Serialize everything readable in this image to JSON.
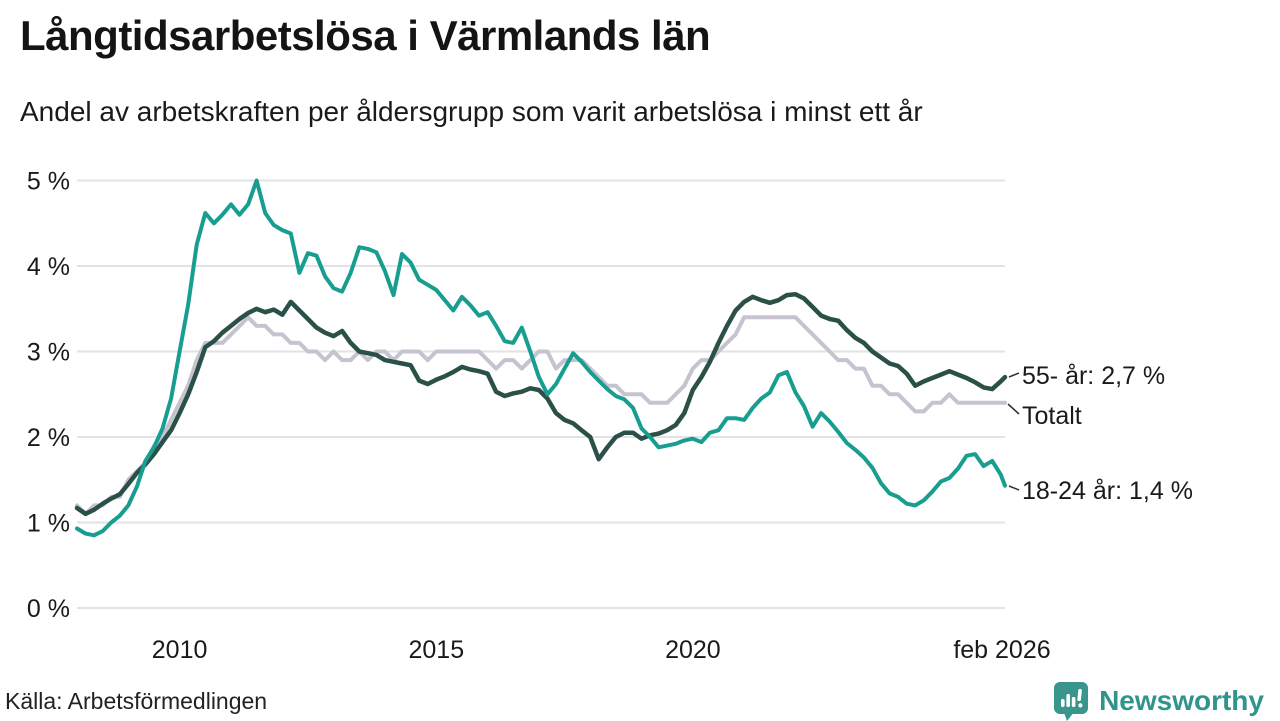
{
  "header": {
    "title": "Långtidsarbetslösa i Värmlands län",
    "subtitle": "Andel av arbetskraften per åldersgrupp som varit arbetslösa i minst ett år"
  },
  "footer": {
    "source": "Källa: Arbetsförmedlingen",
    "brand": "Newsworthy",
    "brand_color": "#2f948b"
  },
  "chart_data": {
    "type": "line",
    "title": "Långtidsarbetslösa i Värmlands län",
    "subtitle": "Andel av arbetskraften per åldersgrupp som varit arbetslösa i minst ett år",
    "x_domain": [
      2008.0,
      2026.083
    ],
    "x_step_years": 0.166667,
    "ylim": [
      0,
      5
    ],
    "grid": true,
    "y_ticks_top_down": [
      "5 %",
      "4 %",
      "3 %",
      "2 %",
      "1 %",
      "0 %"
    ],
    "x_ticks": [
      {
        "year": 2010,
        "label": "2010"
      },
      {
        "year": 2015,
        "label": "2015"
      },
      {
        "year": 2020,
        "label": "2020"
      },
      {
        "year": 2026.083,
        "label": "feb 2026"
      }
    ],
    "series": [
      {
        "id": "totalt",
        "name": "Totalt",
        "color": "#c5c3d0",
        "stroke_width": 4,
        "values": [
          1.2,
          1.1,
          1.2,
          1.2,
          1.3,
          1.3,
          1.5,
          1.6,
          1.7,
          1.9,
          2.0,
          2.2,
          2.4,
          2.6,
          2.9,
          3.1,
          3.1,
          3.1,
          3.2,
          3.3,
          3.4,
          3.3,
          3.3,
          3.2,
          3.2,
          3.1,
          3.1,
          3.0,
          3.0,
          2.9,
          3.0,
          2.9,
          2.9,
          3.0,
          2.9,
          3.0,
          3.0,
          2.9,
          3.0,
          3.0,
          3.0,
          2.9,
          3.0,
          3.0,
          3.0,
          3.0,
          3.0,
          3.0,
          2.9,
          2.8,
          2.9,
          2.9,
          2.8,
          2.9,
          3.0,
          3.0,
          2.8,
          2.9,
          2.9,
          2.9,
          2.8,
          2.7,
          2.6,
          2.6,
          2.5,
          2.5,
          2.5,
          2.4,
          2.4,
          2.4,
          2.5,
          2.6,
          2.8,
          2.9,
          2.9,
          3.0,
          3.1,
          3.2,
          3.4,
          3.4,
          3.4,
          3.4,
          3.4,
          3.4,
          3.4,
          3.3,
          3.2,
          3.1,
          3.0,
          2.9,
          2.9,
          2.8,
          2.8,
          2.6,
          2.6,
          2.5,
          2.5,
          2.4,
          2.3,
          2.3,
          2.4,
          2.4,
          2.5,
          2.4,
          2.4,
          2.4,
          2.4,
          2.4,
          2.4,
          2.4
        ]
      },
      {
        "id": "55",
        "name": "55- år",
        "color": "#2b5048",
        "stroke_width": 4.5,
        "values": [
          1.17,
          1.1,
          1.15,
          1.22,
          1.28,
          1.33,
          1.45,
          1.58,
          1.68,
          1.8,
          1.94,
          2.08,
          2.28,
          2.5,
          2.76,
          3.05,
          3.12,
          3.22,
          3.3,
          3.38,
          3.45,
          3.5,
          3.46,
          3.49,
          3.43,
          3.58,
          3.48,
          3.38,
          3.28,
          3.22,
          3.18,
          3.24,
          3.1,
          3.0,
          2.98,
          2.96,
          2.9,
          2.88,
          2.86,
          2.84,
          2.66,
          2.62,
          2.67,
          2.71,
          2.76,
          2.82,
          2.79,
          2.77,
          2.74,
          2.53,
          2.48,
          2.51,
          2.53,
          2.57,
          2.55,
          2.45,
          2.28,
          2.2,
          2.16,
          2.08,
          2.0,
          1.74,
          1.88,
          2.0,
          2.05,
          2.05,
          1.98,
          2.02,
          2.04,
          2.08,
          2.14,
          2.28,
          2.55,
          2.7,
          2.88,
          3.1,
          3.3,
          3.48,
          3.58,
          3.64,
          3.6,
          3.57,
          3.6,
          3.66,
          3.67,
          3.62,
          3.52,
          3.42,
          3.38,
          3.36,
          3.25,
          3.16,
          3.1,
          3.0,
          2.93,
          2.86,
          2.83,
          2.74,
          2.6,
          2.65,
          2.69,
          2.73,
          2.77,
          2.73,
          2.69,
          2.64,
          2.58,
          2.56,
          2.65,
          2.7
        ]
      },
      {
        "id": "1824",
        "name": "18-24 år",
        "color": "#189e90",
        "stroke_width": 4,
        "values": [
          0.93,
          0.87,
          0.85,
          0.9,
          1.0,
          1.08,
          1.2,
          1.42,
          1.72,
          1.88,
          2.1,
          2.45,
          3.0,
          3.55,
          4.25,
          4.62,
          4.5,
          4.6,
          4.72,
          4.6,
          4.72,
          5.0,
          4.62,
          4.48,
          4.42,
          4.38,
          3.92,
          4.15,
          4.12,
          3.88,
          3.74,
          3.7,
          3.92,
          4.22,
          4.2,
          4.16,
          3.94,
          3.66,
          4.14,
          4.04,
          3.84,
          3.78,
          3.72,
          3.6,
          3.48,
          3.64,
          3.54,
          3.42,
          3.46,
          3.3,
          3.12,
          3.1,
          3.28,
          3.0,
          2.7,
          2.5,
          2.62,
          2.8,
          2.98,
          2.88,
          2.76,
          2.66,
          2.56,
          2.48,
          2.44,
          2.34,
          2.1,
          2.0,
          1.88,
          1.9,
          1.92,
          1.96,
          1.98,
          1.94,
          2.05,
          2.08,
          2.22,
          2.22,
          2.2,
          2.34,
          2.45,
          2.52,
          2.72,
          2.76,
          2.52,
          2.36,
          2.12,
          2.28,
          2.18,
          2.06,
          1.93,
          1.85,
          1.76,
          1.64,
          1.46,
          1.34,
          1.3,
          1.22,
          1.2,
          1.26,
          1.36,
          1.48,
          1.52,
          1.63,
          1.78,
          1.8,
          1.66,
          1.72,
          1.56,
          1.43
        ]
      }
    ],
    "annotations": [
      {
        "id": "55",
        "text": "55- år: 2,7 %",
        "value_pct": 2.7
      },
      {
        "id": "totalt",
        "text": "Totalt",
        "value_pct": 2.4
      },
      {
        "id": "1824",
        "text": "18-24 år: 1,4 %",
        "value_pct": 1.4
      }
    ],
    "legend_position": "right-end-labels"
  }
}
